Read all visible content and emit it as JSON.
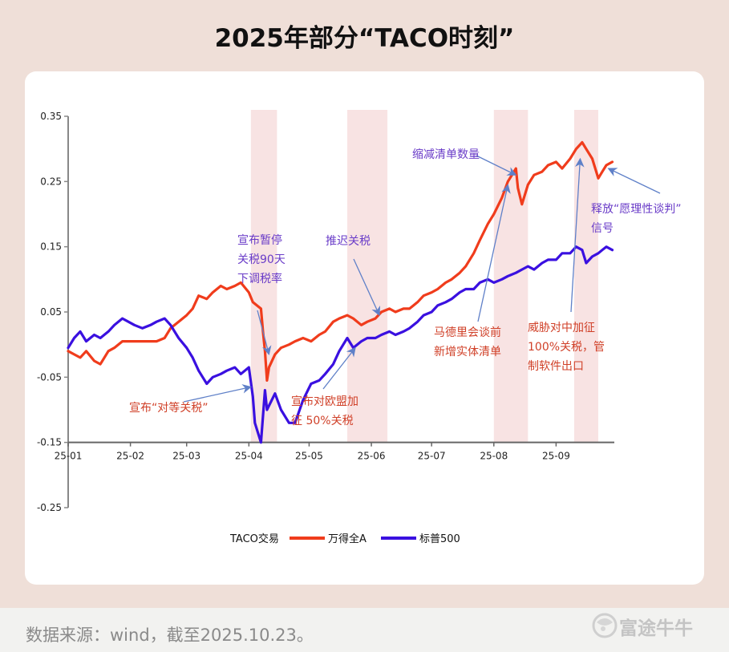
{
  "title": "2025年部分“TACO时刻”",
  "source": "数据来源：wind，截至2025.10.23。",
  "logo": "富途牛牛",
  "colors": {
    "wind_a": "#f03c1c",
    "sp500": "#3a10e0",
    "shade": "#f8e3e3",
    "annotation_red": "#d04028",
    "annotation_purple": "#6a3cc8",
    "arrow": "#5f80c8"
  },
  "chart_data": {
    "type": "line",
    "x_ticks": [
      "25-01",
      "25-02",
      "25-03",
      "25-04",
      "25-05",
      "25-06",
      "25-07",
      "25-08",
      "25-09"
    ],
    "y_ticks": [
      "0.35",
      "0.25",
      "0.15",
      "0.05",
      "-0.05",
      "-0.15",
      "-0.25"
    ],
    "ylim": [
      -0.25,
      0.35
    ],
    "xlim": [
      "2025-01-01",
      "2025-09-30"
    ],
    "legend": {
      "title": "TACO交易",
      "entries": [
        "万得全A",
        "标普500"
      ],
      "position": "bottom-center"
    },
    "shaded_periods": [
      [
        "2025-04-02",
        "2025-04-15"
      ],
      [
        "2025-05-20",
        "2025-06-09"
      ],
      [
        "2025-08-01",
        "2025-08-18"
      ],
      [
        "2025-09-10",
        "2025-09-22"
      ]
    ],
    "series": [
      {
        "name": "万得全A",
        "points": [
          [
            "2025-01-01",
            -0.01
          ],
          [
            "2025-01-04",
            -0.015
          ],
          [
            "2025-01-07",
            -0.02
          ],
          [
            "2025-01-10",
            -0.01
          ],
          [
            "2025-01-14",
            -0.025
          ],
          [
            "2025-01-17",
            -0.03
          ],
          [
            "2025-01-21",
            -0.01
          ],
          [
            "2025-01-24",
            -0.005
          ],
          [
            "2025-01-28",
            0.005
          ],
          [
            "2025-02-03",
            0.005
          ],
          [
            "2025-02-07",
            0.005
          ],
          [
            "2025-02-11",
            0.005
          ],
          [
            "2025-02-14",
            0.005
          ],
          [
            "2025-02-18",
            0.01
          ],
          [
            "2025-02-21",
            0.025
          ],
          [
            "2025-02-25",
            0.035
          ],
          [
            "2025-03-01",
            0.045
          ],
          [
            "2025-03-04",
            0.055
          ],
          [
            "2025-03-07",
            0.075
          ],
          [
            "2025-03-11",
            0.07
          ],
          [
            "2025-03-14",
            0.08
          ],
          [
            "2025-03-18",
            0.09
          ],
          [
            "2025-03-21",
            0.085
          ],
          [
            "2025-03-25",
            0.09
          ],
          [
            "2025-03-28",
            0.095
          ],
          [
            "2025-04-01",
            0.08
          ],
          [
            "2025-04-03",
            0.065
          ],
          [
            "2025-04-07",
            0.055
          ],
          [
            "2025-04-08",
            0.02
          ],
          [
            "2025-04-09",
            -0.01
          ],
          [
            "2025-04-10",
            -0.055
          ],
          [
            "2025-04-11",
            -0.035
          ],
          [
            "2025-04-14",
            -0.015
          ],
          [
            "2025-04-17",
            -0.005
          ],
          [
            "2025-04-21",
            0.0
          ],
          [
            "2025-04-24",
            0.005
          ],
          [
            "2025-04-28",
            0.01
          ],
          [
            "2025-05-02",
            0.005
          ],
          [
            "2025-05-06",
            0.015
          ],
          [
            "2025-05-09",
            0.02
          ],
          [
            "2025-05-13",
            0.035
          ],
          [
            "2025-05-16",
            0.04
          ],
          [
            "2025-05-20",
            0.045
          ],
          [
            "2025-05-23",
            0.04
          ],
          [
            "2025-05-27",
            0.03
          ],
          [
            "2025-05-30",
            0.035
          ],
          [
            "2025-06-03",
            0.04
          ],
          [
            "2025-06-06",
            0.05
          ],
          [
            "2025-06-10",
            0.055
          ],
          [
            "2025-06-13",
            0.05
          ],
          [
            "2025-06-17",
            0.055
          ],
          [
            "2025-06-20",
            0.055
          ],
          [
            "2025-06-24",
            0.065
          ],
          [
            "2025-06-27",
            0.075
          ],
          [
            "2025-07-01",
            0.08
          ],
          [
            "2025-07-04",
            0.085
          ],
          [
            "2025-07-08",
            0.095
          ],
          [
            "2025-07-11",
            0.1
          ],
          [
            "2025-07-15",
            0.11
          ],
          [
            "2025-07-18",
            0.12
          ],
          [
            "2025-07-22",
            0.14
          ],
          [
            "2025-07-25",
            0.16
          ],
          [
            "2025-07-29",
            0.185
          ],
          [
            "2025-08-01",
            0.2
          ],
          [
            "2025-08-05",
            0.225
          ],
          [
            "2025-08-08",
            0.25
          ],
          [
            "2025-08-12",
            0.27
          ],
          [
            "2025-08-13",
            0.24
          ],
          [
            "2025-08-15",
            0.215
          ],
          [
            "2025-08-18",
            0.245
          ],
          [
            "2025-08-21",
            0.26
          ],
          [
            "2025-08-25",
            0.265
          ],
          [
            "2025-08-28",
            0.275
          ],
          [
            "2025-09-01",
            0.28
          ],
          [
            "2025-09-04",
            0.27
          ],
          [
            "2025-09-08",
            0.285
          ],
          [
            "2025-09-11",
            0.3
          ],
          [
            "2025-09-14",
            0.31
          ],
          [
            "2025-09-16",
            0.3
          ],
          [
            "2025-09-19",
            0.285
          ],
          [
            "2025-09-22",
            0.255
          ],
          [
            "2025-09-24",
            0.265
          ],
          [
            "2025-09-26",
            0.275
          ],
          [
            "2025-09-29",
            0.28
          ]
        ]
      },
      {
        "name": "标普500",
        "points": [
          [
            "2025-01-01",
            -0.005
          ],
          [
            "2025-01-04",
            0.01
          ],
          [
            "2025-01-07",
            0.02
          ],
          [
            "2025-01-10",
            0.005
          ],
          [
            "2025-01-14",
            0.015
          ],
          [
            "2025-01-17",
            0.01
          ],
          [
            "2025-01-21",
            0.02
          ],
          [
            "2025-01-24",
            0.03
          ],
          [
            "2025-01-28",
            0.04
          ],
          [
            "2025-02-03",
            0.03
          ],
          [
            "2025-02-07",
            0.025
          ],
          [
            "2025-02-11",
            0.03
          ],
          [
            "2025-02-14",
            0.035
          ],
          [
            "2025-02-18",
            0.04
          ],
          [
            "2025-02-21",
            0.03
          ],
          [
            "2025-02-25",
            0.01
          ],
          [
            "2025-03-01",
            -0.005
          ],
          [
            "2025-03-04",
            -0.02
          ],
          [
            "2025-03-07",
            -0.04
          ],
          [
            "2025-03-11",
            -0.06
          ],
          [
            "2025-03-14",
            -0.05
          ],
          [
            "2025-03-18",
            -0.045
          ],
          [
            "2025-03-21",
            -0.04
          ],
          [
            "2025-03-25",
            -0.035
          ],
          [
            "2025-03-28",
            -0.045
          ],
          [
            "2025-04-01",
            -0.035
          ],
          [
            "2025-04-03",
            -0.08
          ],
          [
            "2025-04-04",
            -0.12
          ],
          [
            "2025-04-07",
            -0.15
          ],
          [
            "2025-04-08",
            -0.11
          ],
          [
            "2025-04-09",
            -0.07
          ],
          [
            "2025-04-10",
            -0.1
          ],
          [
            "2025-04-14",
            -0.075
          ],
          [
            "2025-04-17",
            -0.1
          ],
          [
            "2025-04-21",
            -0.12
          ],
          [
            "2025-04-24",
            -0.12
          ],
          [
            "2025-04-28",
            -0.085
          ],
          [
            "2025-05-02",
            -0.06
          ],
          [
            "2025-05-06",
            -0.055
          ],
          [
            "2025-05-09",
            -0.045
          ],
          [
            "2025-05-13",
            -0.03
          ],
          [
            "2025-05-16",
            -0.01
          ],
          [
            "2025-05-20",
            0.01
          ],
          [
            "2025-05-23",
            -0.005
          ],
          [
            "2025-05-27",
            0.005
          ],
          [
            "2025-05-30",
            0.01
          ],
          [
            "2025-06-03",
            0.01
          ],
          [
            "2025-06-06",
            0.015
          ],
          [
            "2025-06-10",
            0.02
          ],
          [
            "2025-06-13",
            0.015
          ],
          [
            "2025-06-17",
            0.02
          ],
          [
            "2025-06-20",
            0.025
          ],
          [
            "2025-06-24",
            0.035
          ],
          [
            "2025-06-27",
            0.045
          ],
          [
            "2025-07-01",
            0.05
          ],
          [
            "2025-07-04",
            0.06
          ],
          [
            "2025-07-08",
            0.065
          ],
          [
            "2025-07-11",
            0.07
          ],
          [
            "2025-07-15",
            0.08
          ],
          [
            "2025-07-18",
            0.085
          ],
          [
            "2025-07-22",
            0.085
          ],
          [
            "2025-07-25",
            0.095
          ],
          [
            "2025-07-29",
            0.1
          ],
          [
            "2025-08-01",
            0.095
          ],
          [
            "2025-08-05",
            0.1
          ],
          [
            "2025-08-08",
            0.105
          ],
          [
            "2025-08-12",
            0.11
          ],
          [
            "2025-08-15",
            0.115
          ],
          [
            "2025-08-18",
            0.12
          ],
          [
            "2025-08-21",
            0.115
          ],
          [
            "2025-08-25",
            0.125
          ],
          [
            "2025-08-28",
            0.13
          ],
          [
            "2025-09-01",
            0.13
          ],
          [
            "2025-09-04",
            0.14
          ],
          [
            "2025-09-08",
            0.14
          ],
          [
            "2025-09-11",
            0.15
          ],
          [
            "2025-09-14",
            0.145
          ],
          [
            "2025-09-16",
            0.125
          ],
          [
            "2025-09-19",
            0.135
          ],
          [
            "2025-09-22",
            0.14
          ],
          [
            "2025-09-24",
            0.145
          ],
          [
            "2025-09-26",
            0.15
          ],
          [
            "2025-09-29",
            0.145
          ]
        ]
      }
    ],
    "annotations": [
      {
        "id": "reciprocal",
        "lines": [
          "宣布“对等关税”"
        ],
        "color": "red",
        "date": "2025-04-02",
        "value": -0.065
      },
      {
        "id": "pause",
        "lines": [
          "宣布暂停",
          "关税90天",
          "下调税率"
        ],
        "color": "purple",
        "date": "2025-04-11",
        "value": -0.015
      },
      {
        "id": "eu",
        "lines": [
          "宣布对欧盟加",
          "征 50%关税"
        ],
        "color": "red",
        "date": "2025-05-24",
        "value": -0.005
      },
      {
        "id": "delay",
        "lines": [
          "推迟关税"
        ],
        "color": "purple",
        "date": "2025-06-05",
        "value": 0.045
      },
      {
        "id": "madrid",
        "lines": [
          "马德里会谈前",
          "新增实体清单"
        ],
        "color": "red",
        "date": "2025-08-08",
        "value": 0.245
      },
      {
        "id": "shrink",
        "lines": [
          "缩减清单数量"
        ],
        "color": "purple",
        "date": "2025-08-12",
        "value": 0.26
      },
      {
        "id": "threat",
        "lines": [
          "威胁对中加征",
          "100%关税，管",
          "制软件出口"
        ],
        "color": "red",
        "date": "2025-09-13",
        "value": 0.285
      },
      {
        "id": "release",
        "lines": [
          "释放“愿理性谈判”",
          "信号"
        ],
        "color": "purple",
        "date": "2025-09-27",
        "value": 0.27
      }
    ]
  }
}
